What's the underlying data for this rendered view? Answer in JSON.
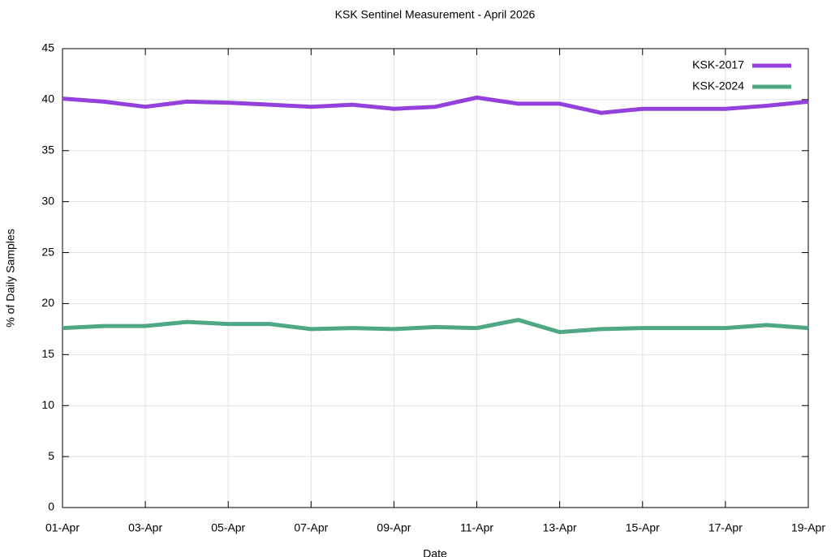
{
  "chart_data": {
    "type": "line",
    "title": "KSK Sentinel Measurement - April 2026",
    "x_label": "Date",
    "y_label": "% of Daily Samples",
    "categories": [
      "01-Apr",
      null,
      "03-Apr",
      null,
      "05-Apr",
      null,
      "07-Apr",
      null,
      "09-Apr",
      null,
      "11-Apr",
      null,
      "13-Apr",
      null,
      "15-Apr",
      null,
      "17-Apr",
      null,
      "19-Apr"
    ],
    "series": [
      {
        "name": "KSK-2017",
        "color": "#9440dd",
        "values": [
          40.1,
          39.8,
          39.3,
          39.8,
          39.7,
          39.5,
          39.3,
          39.5,
          39.1,
          39.3,
          40.2,
          39.6,
          39.6,
          38.7,
          39.1,
          39.1,
          39.1,
          39.4,
          39.8
        ]
      },
      {
        "name": "KSK-2024",
        "color": "#4fa884",
        "values": [
          17.6,
          17.8,
          17.8,
          18.2,
          18.0,
          18.0,
          17.5,
          17.6,
          17.5,
          17.7,
          17.6,
          18.4,
          17.2,
          17.5,
          17.6,
          17.6,
          17.6,
          17.9,
          17.6
        ]
      }
    ],
    "ylim": [
      0,
      45
    ],
    "yticks": [
      0,
      5,
      10,
      15,
      20,
      25,
      30,
      35,
      40,
      45
    ],
    "grid": true,
    "legend": "top-right"
  }
}
